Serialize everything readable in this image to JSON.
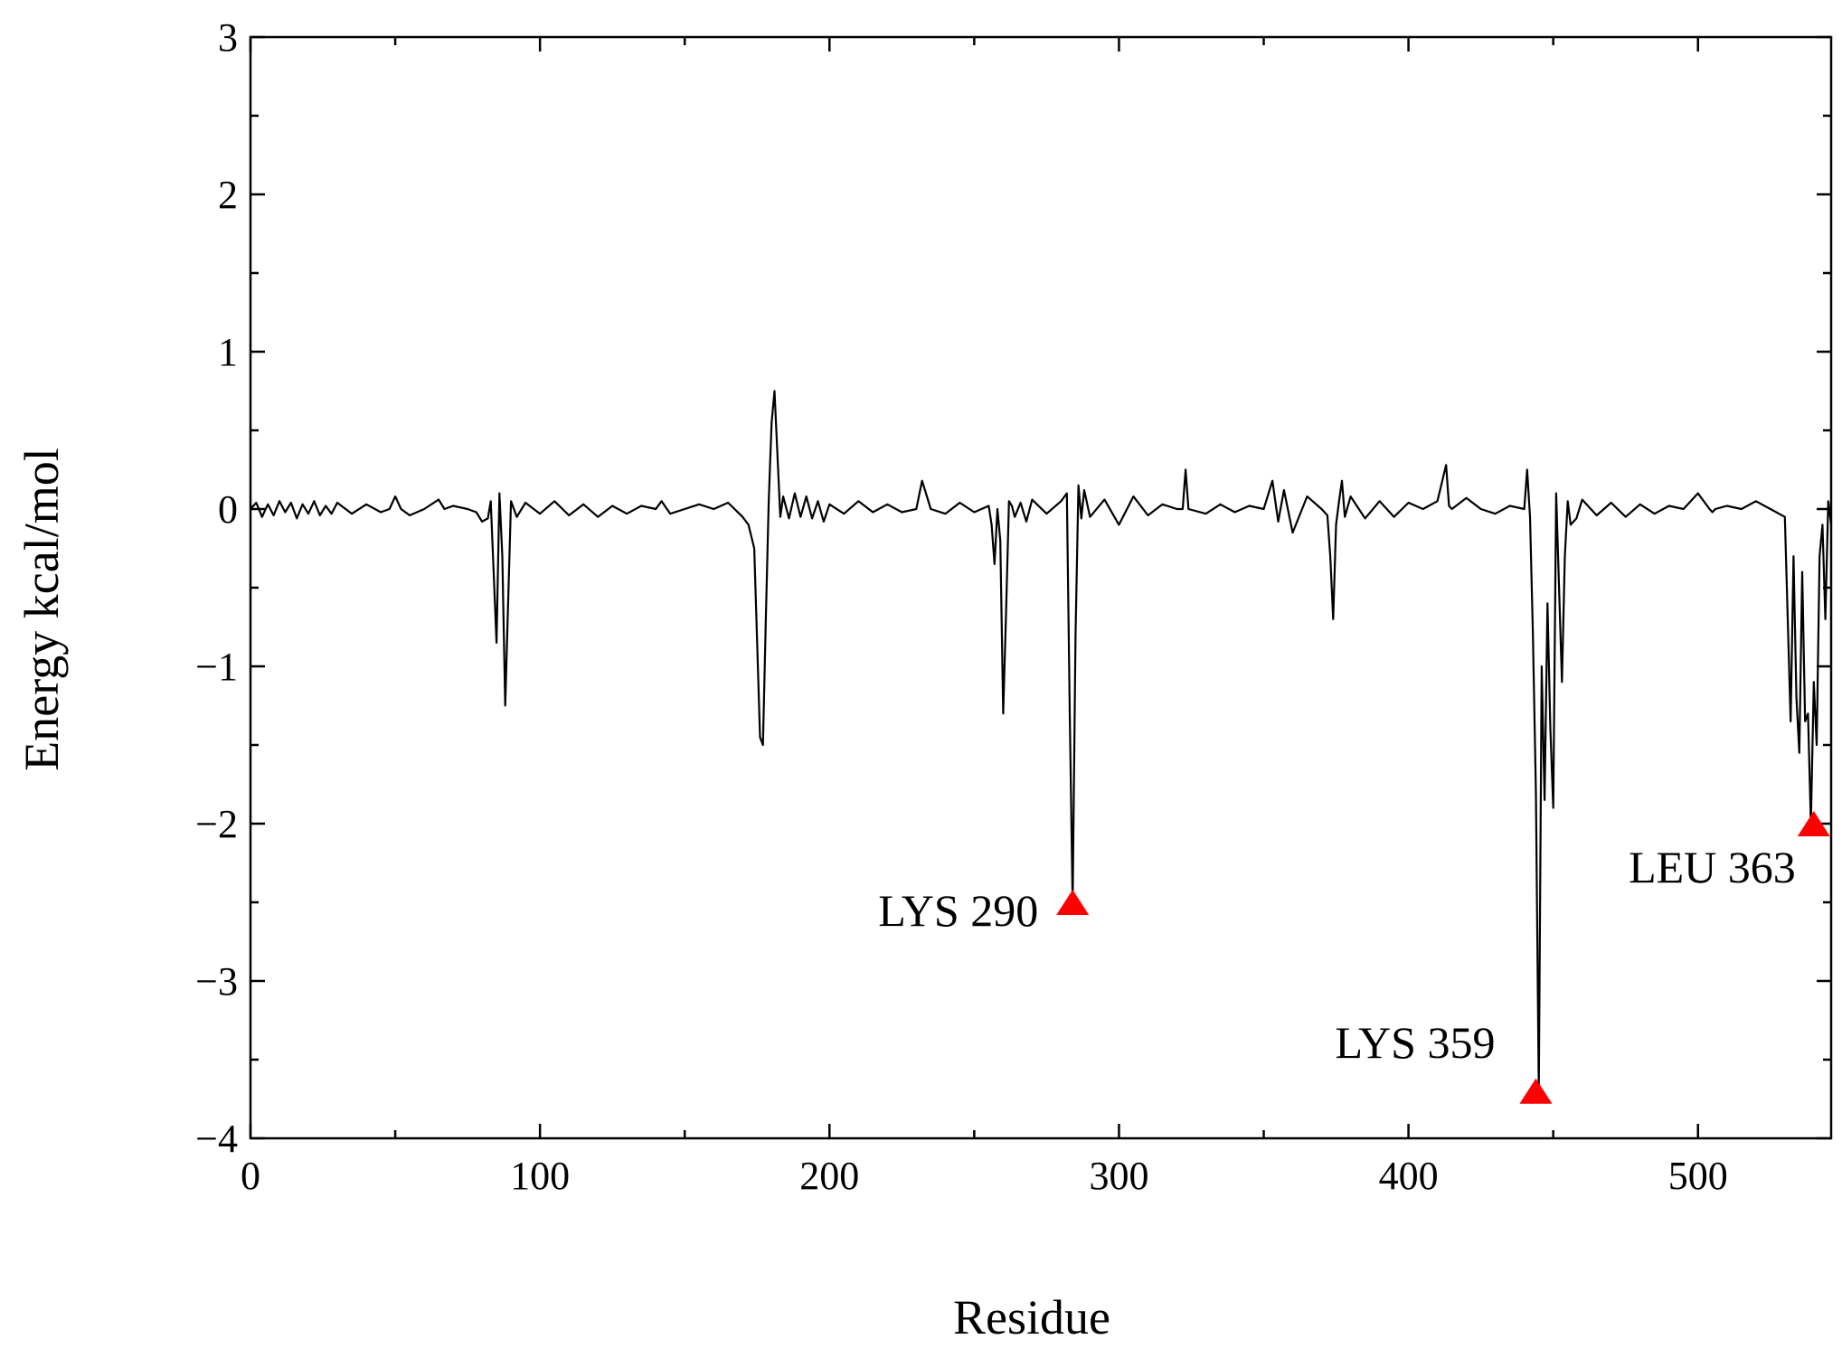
{
  "chart_data": {
    "type": "line",
    "xlabel": "Residue",
    "ylabel": "Energy kcal/mol",
    "xlim": [
      0,
      546
    ],
    "ylim": [
      -4,
      3
    ],
    "x_ticks": [
      0,
      100,
      200,
      300,
      400,
      500
    ],
    "x_minor_ticks": [
      50,
      150,
      250,
      350,
      450
    ],
    "y_ticks": [
      3,
      2,
      1,
      0,
      -1,
      -2,
      -3,
      -4
    ],
    "y_tick_labels": [
      "3",
      "2",
      "1",
      "0",
      "−1",
      "−2",
      "−3",
      "−4"
    ],
    "y_minor_ticks": [
      2.5,
      1.5,
      0.5,
      -0.5,
      -1.5,
      -2.5,
      -3.5
    ],
    "grid": false,
    "line_color": "#000000",
    "marker_color": "#ff0000",
    "series": [
      {
        "x": [
          0,
          2,
          4,
          6,
          8,
          10,
          12,
          14,
          16,
          18,
          20,
          22,
          24,
          26,
          28,
          30,
          35,
          40,
          45,
          48,
          50,
          52,
          55,
          60,
          65,
          67,
          70,
          75,
          78,
          80,
          82,
          83,
          84,
          85,
          86,
          87,
          88,
          89,
          90,
          92,
          95,
          100,
          105,
          110,
          115,
          120,
          125,
          130,
          135,
          140,
          142,
          145,
          150,
          155,
          160,
          165,
          170,
          172,
          174,
          176,
          177,
          178,
          179,
          180,
          181,
          182,
          183,
          184,
          186,
          188,
          190,
          192,
          194,
          196,
          198,
          200,
          205,
          210,
          215,
          220,
          225,
          230,
          232,
          235,
          240,
          245,
          250,
          255,
          256,
          257,
          258,
          259,
          260,
          261,
          262,
          263,
          264,
          266,
          268,
          270,
          275,
          280,
          282,
          283,
          284,
          285,
          286,
          287,
          288,
          290,
          295,
          300,
          305,
          310,
          315,
          320,
          322,
          323,
          324,
          330,
          335,
          340,
          345,
          350,
          353,
          355,
          357,
          360,
          365,
          370,
          372,
          373,
          374,
          375,
          376,
          377,
          378,
          380,
          385,
          390,
          395,
          400,
          405,
          410,
          413,
          414,
          415,
          420,
          425,
          430,
          435,
          440,
          441,
          442,
          443,
          444,
          445,
          446,
          447,
          448,
          449,
          450,
          451,
          452,
          453,
          454,
          455,
          456,
          458,
          460,
          465,
          470,
          475,
          480,
          485,
          490,
          495,
          500,
          504,
          505,
          506,
          510,
          515,
          520,
          525,
          530,
          531,
          532,
          533,
          534,
          535,
          536,
          537,
          538,
          539,
          540,
          541,
          542,
          543,
          544,
          545,
          546
        ],
        "y": [
          0.0,
          0.04,
          -0.05,
          0.03,
          -0.04,
          0.05,
          -0.02,
          0.04,
          -0.06,
          0.03,
          -0.03,
          0.05,
          -0.04,
          0.02,
          -0.03,
          0.04,
          -0.03,
          0.03,
          -0.02,
          0.0,
          0.08,
          0.0,
          -0.04,
          0.0,
          0.06,
          0.0,
          0.02,
          0.0,
          -0.02,
          -0.08,
          -0.06,
          0.05,
          -0.4,
          -0.85,
          0.1,
          -0.3,
          -1.25,
          -0.6,
          0.05,
          -0.05,
          0.04,
          -0.03,
          0.05,
          -0.04,
          0.03,
          -0.05,
          0.02,
          -0.03,
          0.02,
          0.0,
          0.05,
          -0.03,
          0.0,
          0.03,
          0.0,
          0.04,
          -0.05,
          -0.1,
          -0.25,
          -1.45,
          -1.5,
          -0.7,
          0.05,
          0.55,
          0.75,
          0.35,
          -0.05,
          0.08,
          -0.06,
          0.1,
          -0.05,
          0.08,
          -0.06,
          0.05,
          -0.08,
          0.03,
          -0.03,
          0.05,
          -0.02,
          0.03,
          -0.02,
          0.0,
          0.18,
          0.0,
          -0.03,
          0.04,
          -0.02,
          0.02,
          -0.1,
          -0.35,
          0.0,
          -0.2,
          -1.3,
          -0.65,
          0.05,
          0.02,
          -0.05,
          0.04,
          -0.08,
          0.06,
          -0.03,
          0.05,
          0.1,
          -1.3,
          -2.5,
          -0.8,
          0.15,
          -0.06,
          0.12,
          -0.05,
          0.06,
          -0.1,
          0.08,
          -0.04,
          0.03,
          0.0,
          0.0,
          0.25,
          0.0,
          -0.03,
          0.03,
          -0.02,
          0.02,
          0.0,
          0.18,
          -0.08,
          0.12,
          -0.15,
          0.08,
          0.0,
          -0.04,
          -0.3,
          -0.7,
          -0.1,
          0.05,
          0.18,
          -0.05,
          0.08,
          -0.06,
          0.05,
          -0.05,
          0.04,
          0.0,
          0.05,
          0.28,
          0.02,
          0.0,
          0.07,
          0.0,
          -0.03,
          0.02,
          0.0,
          0.25,
          -0.05,
          -0.8,
          -1.8,
          -3.7,
          -1.0,
          -1.85,
          -0.6,
          -1.4,
          -1.9,
          0.1,
          -0.5,
          -1.1,
          -0.3,
          0.05,
          -0.1,
          -0.06,
          0.06,
          -0.04,
          0.04,
          -0.05,
          0.03,
          -0.03,
          0.02,
          0.0,
          0.1,
          0.0,
          -0.02,
          0.0,
          0.02,
          0.0,
          0.05,
          0.0,
          -0.05,
          -0.7,
          -1.35,
          -0.3,
          -1.2,
          -1.55,
          -0.4,
          -1.35,
          -1.3,
          -2.0,
          -1.1,
          -1.5,
          -0.3,
          -0.1,
          -0.7,
          0.05,
          -0.1
        ]
      }
    ],
    "annotations": [
      {
        "label": "LYS 290",
        "x": 284,
        "y": -2.5
      },
      {
        "label": "LYS 359",
        "x": 444,
        "y": -3.7
      },
      {
        "label": "LEU 363",
        "x": 540,
        "y": -2.0
      }
    ]
  }
}
